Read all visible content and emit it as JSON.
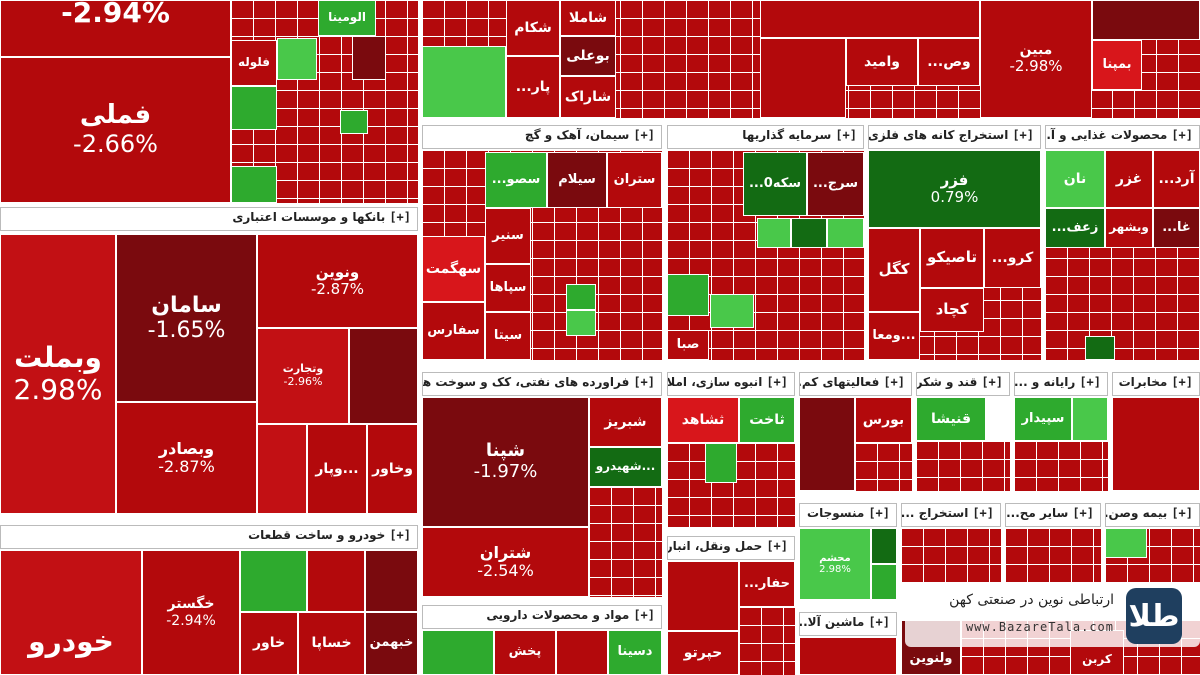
{
  "colors": {
    "dark": "#7a0a0e",
    "red": "#b3090c",
    "mid": "#c21014",
    "bright": "#d8161b",
    "green": "#2eaa2e",
    "lgreen": "#49c84a",
    "dgreen": "#136b13"
  },
  "sectors": {
    "banks": "بانکها و موسسات اعتباری",
    "auto": "خودرو و ساخت قطعات",
    "cement": "سیمان، آهک و گچ",
    "investment": "سرمایه گذاریها",
    "metal_mining": "استخراج کانه های فلزی",
    "food": "محصولات غذایی و آ...",
    "petroleum": "فراورده های نفتی، کک و سوخت هس...",
    "realestate": "انبوه سازی، املا...",
    "finance_activities": "فعالیتهای کم...",
    "sugar": "قند و شکر",
    "computer": "رایانه و ...",
    "telecom": "مخابرات",
    "transport": "حمل ونقل، انبار...",
    "textiles": "منسوجات",
    "extraction": "استخراج ...",
    "other_mining": "سایر مح...",
    "insurance": "بیمه وصن...",
    "pharma": "مواد و محصولات دارویی",
    "machinery": "ماشین آلا..."
  },
  "plus": "[+]",
  "tiles": {
    "fameli": {
      "n": "فملی",
      "p": "-2.66%"
    },
    "top_big": {
      "p": "-2.94%"
    },
    "vbmellat": {
      "n": "وبملت",
      "p": "2.98%"
    },
    "saman": {
      "n": "سامان",
      "p": "-1.65%"
    },
    "vnovin": {
      "n": "ونوین",
      "p": "-2.87%"
    },
    "vetjarat": {
      "n": "وتجارت",
      "p": "-2.96%"
    },
    "vbsader": {
      "n": "وبصادر",
      "p": "-2.87%"
    },
    "vpar": {
      "n": "وپار..."
    },
    "vkhavar": {
      "n": "وخاور"
    },
    "khodro": {
      "n": "خودرو"
    },
    "khgostar": {
      "n": "خگستر",
      "p": "-2.94%"
    },
    "khavar": {
      "n": "خاور"
    },
    "khsapa": {
      "n": "خساپا"
    },
    "khbahman": {
      "n": "خبهمن"
    },
    "shabna": {
      "n": "شپنا",
      "p": "-1.97%"
    },
    "shetran": {
      "n": "شتران",
      "p": "-2.54%"
    },
    "shebriz": {
      "n": "شبریز"
    },
    "shahid": {
      "n": "شهیدرو..."
    },
    "fazar": {
      "n": "فزر",
      "p": "0.79%"
    },
    "kegol": {
      "n": "کگل"
    },
    "tapico": {
      "n": "تاصیکو"
    },
    "kechad": {
      "n": "کچاد"
    },
    "kro": {
      "n": "...کرو"
    },
    "vomaa": {
      "n": "ومعا..."
    },
    "seman_set": {
      "n": "ستران"
    },
    "selam": {
      "n": "سیلام"
    },
    "sasu": {
      "n": "...سصو"
    },
    "sahgamt": {
      "n": "سهگمت"
    },
    "sanir": {
      "n": "سنیر"
    },
    "sepaha": {
      "n": "سپاها"
    },
    "sita": {
      "n": "سیتا"
    },
    "safars": {
      "n": "سفارس"
    },
    "vsekeh": {
      "n": "...سکه0"
    },
    "vsarj": {
      "n": "...سرج"
    },
    "vsaba": {
      "n": "صبا"
    },
    "nan": {
      "n": "نان"
    },
    "ghazar": {
      "n": "غزر"
    },
    "vbshahr": {
      "n": "وبشهر"
    },
    "zeaf": {
      "n": "...زعف"
    },
    "ard": {
      "n": "...آرد"
    },
    "ghe": {
      "n": "...غا"
    },
    "tashahd": {
      "n": "ثشاهد"
    },
    "takhat": {
      "n": "ثاخت"
    },
    "bours": {
      "n": "بورس"
    },
    "ghenisha": {
      "n": "قنیشا"
    },
    "sepidar": {
      "n": "سپیدار"
    },
    "hefar": {
      "n": "...حفار"
    },
    "hiarto": {
      "n": "حپرتو"
    },
    "mahshan": {
      "n": "محشم",
      "p": "2.98%"
    },
    "dasina": {
      "n": "دسینا"
    },
    "dapakhsh": {
      "n": "پخش"
    },
    "mobin": {
      "n": "مبین",
      "p": "-2.98%"
    },
    "bepna": {
      "n": "بمپنا"
    },
    "vomid": {
      "n": "وامید"
    },
    "vos": {
      "n": "...وص"
    },
    "folula": {
      "n": "فلوله"
    },
    "alumina": {
      "n": "الومینا"
    },
    "shakam": {
      "n": "شکام"
    },
    "shamla": {
      "n": "شاملا"
    },
    "boali": {
      "n": "بوعلی"
    },
    "sharak": {
      "n": "شاراک"
    },
    "par": {
      "n": "...پار"
    },
    "karbon": {
      "n": "کربن"
    },
    "vnovin2": {
      "n": "ولنوین"
    }
  },
  "watermark": {
    "title": "ارتباطی نوین در صنعتی کهن",
    "url": "www.BazareTala.com",
    "logo": "طلا"
  }
}
